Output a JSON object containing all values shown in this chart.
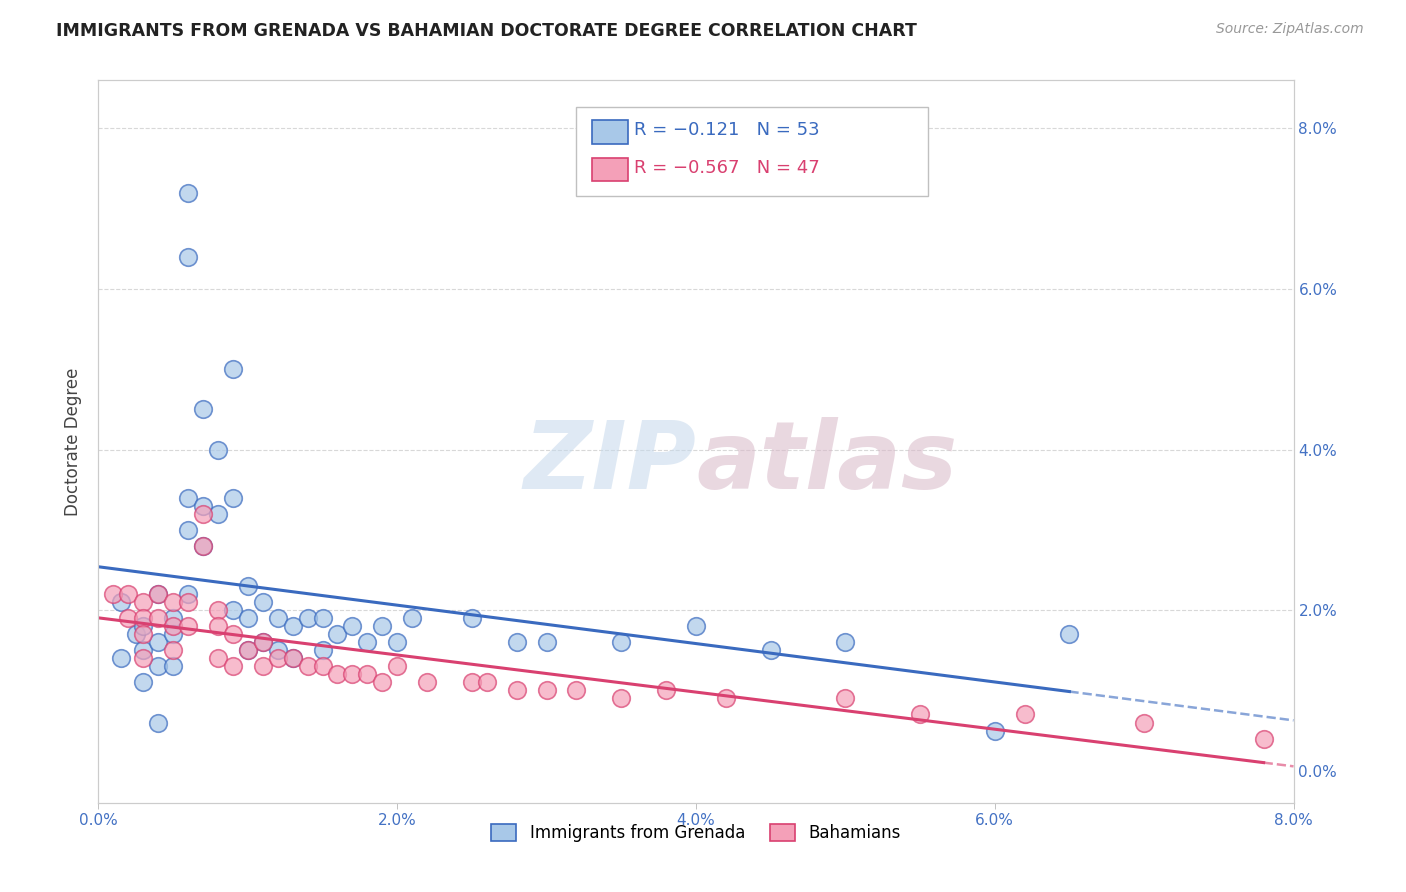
{
  "title": "IMMIGRANTS FROM GRENADA VS BAHAMIAN DOCTORATE DEGREE CORRELATION CHART",
  "source": "Source: ZipAtlas.com",
  "ylabel_label": "Doctorate Degree",
  "xmin": 0.0,
  "xmax": 0.08,
  "ymin": -0.004,
  "ymax": 0.086,
  "tick_vals": [
    0.0,
    0.02,
    0.04,
    0.06,
    0.08
  ],
  "grenada_R": -0.121,
  "grenada_N": 53,
  "bahamian_R": -0.567,
  "bahamian_N": 47,
  "grenada_color": "#a8c8e8",
  "bahamian_color": "#f4a0b8",
  "grenada_line_color": "#3a6abf",
  "bahamian_line_color": "#d94070",
  "legend_label_1": "Immigrants from Grenada",
  "legend_label_2": "Bahamians",
  "watermark_color": "#d0e4f0",
  "background_color": "#ffffff",
  "grid_color": "#d8d8d8",
  "grenada_scatter_x": [
    0.0015,
    0.0015,
    0.0025,
    0.003,
    0.003,
    0.003,
    0.004,
    0.004,
    0.004,
    0.004,
    0.005,
    0.005,
    0.005,
    0.006,
    0.006,
    0.006,
    0.006,
    0.006,
    0.007,
    0.007,
    0.007,
    0.008,
    0.008,
    0.009,
    0.009,
    0.009,
    0.01,
    0.01,
    0.01,
    0.011,
    0.011,
    0.012,
    0.012,
    0.013,
    0.013,
    0.014,
    0.015,
    0.015,
    0.016,
    0.017,
    0.018,
    0.019,
    0.02,
    0.021,
    0.025,
    0.028,
    0.03,
    0.035,
    0.04,
    0.045,
    0.05,
    0.06,
    0.065
  ],
  "grenada_scatter_y": [
    0.021,
    0.014,
    0.017,
    0.018,
    0.015,
    0.011,
    0.022,
    0.016,
    0.013,
    0.006,
    0.019,
    0.017,
    0.013,
    0.072,
    0.064,
    0.034,
    0.03,
    0.022,
    0.045,
    0.033,
    0.028,
    0.04,
    0.032,
    0.05,
    0.034,
    0.02,
    0.023,
    0.019,
    0.015,
    0.021,
    0.016,
    0.019,
    0.015,
    0.018,
    0.014,
    0.019,
    0.019,
    0.015,
    0.017,
    0.018,
    0.016,
    0.018,
    0.016,
    0.019,
    0.019,
    0.016,
    0.016,
    0.016,
    0.018,
    0.015,
    0.016,
    0.005,
    0.017
  ],
  "bahamian_scatter_x": [
    0.001,
    0.002,
    0.002,
    0.003,
    0.003,
    0.003,
    0.003,
    0.004,
    0.004,
    0.005,
    0.005,
    0.005,
    0.006,
    0.006,
    0.007,
    0.007,
    0.008,
    0.008,
    0.008,
    0.009,
    0.009,
    0.01,
    0.011,
    0.011,
    0.012,
    0.013,
    0.014,
    0.015,
    0.016,
    0.017,
    0.018,
    0.019,
    0.02,
    0.022,
    0.025,
    0.026,
    0.028,
    0.03,
    0.032,
    0.035,
    0.038,
    0.042,
    0.05,
    0.055,
    0.062,
    0.07,
    0.078
  ],
  "bahamian_scatter_y": [
    0.022,
    0.022,
    0.019,
    0.021,
    0.019,
    0.017,
    0.014,
    0.022,
    0.019,
    0.021,
    0.018,
    0.015,
    0.021,
    0.018,
    0.032,
    0.028,
    0.02,
    0.018,
    0.014,
    0.017,
    0.013,
    0.015,
    0.016,
    0.013,
    0.014,
    0.014,
    0.013,
    0.013,
    0.012,
    0.012,
    0.012,
    0.011,
    0.013,
    0.011,
    0.011,
    0.011,
    0.01,
    0.01,
    0.01,
    0.009,
    0.01,
    0.009,
    0.009,
    0.007,
    0.007,
    0.006,
    0.004
  ]
}
